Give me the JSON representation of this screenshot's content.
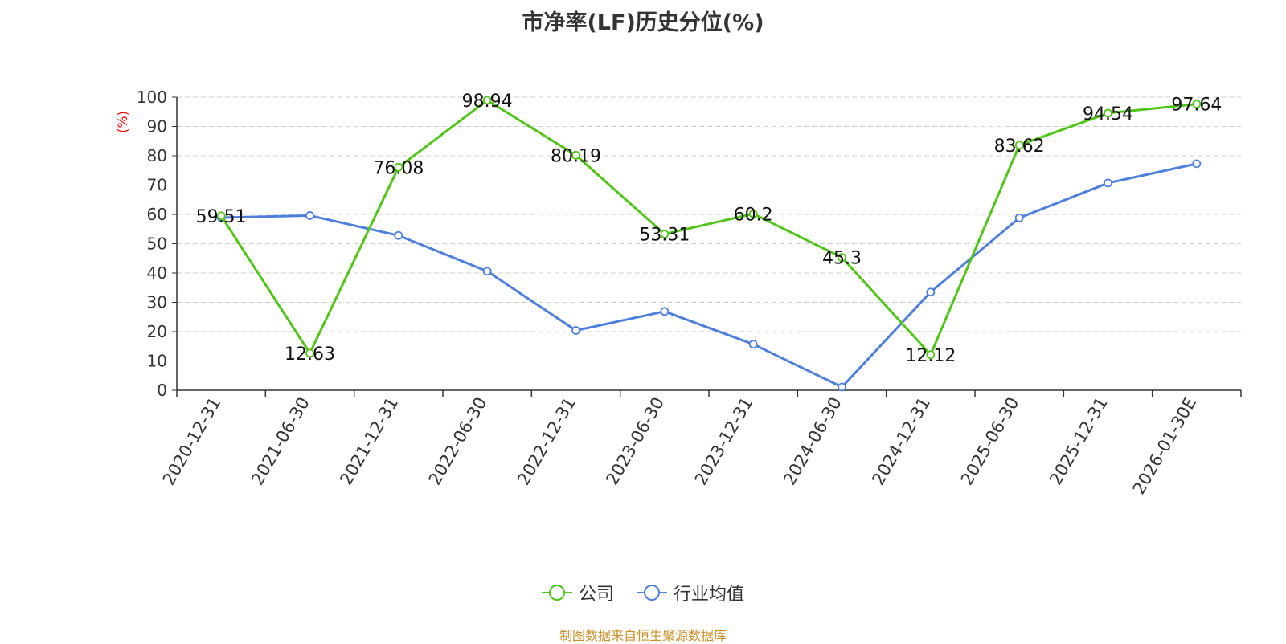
{
  "chart_data": {
    "type": "line",
    "title": "市净率(LF)历史分位(%)",
    "ylabel": "(%)",
    "xlabel": "",
    "ylim": [
      0,
      100
    ],
    "yticks": [
      0,
      10,
      20,
      30,
      40,
      50,
      60,
      70,
      80,
      90,
      100
    ],
    "grid": true,
    "legend_position": "bottom",
    "categories": [
      "2020-12-31",
      "2021-06-30",
      "2021-12-31",
      "2022-06-30",
      "2022-12-31",
      "2023-06-30",
      "2023-12-31",
      "2024-06-30",
      "2024-12-31",
      "2025-06-30",
      "2025-12-31",
      "2026-01-30E"
    ],
    "series": [
      {
        "name": "公司",
        "color": "#52c41a",
        "values": [
          59.51,
          12.63,
          76.08,
          98.94,
          80.19,
          53.31,
          60.2,
          45.3,
          12.12,
          83.62,
          94.54,
          97.64
        ],
        "labels": [
          "59.51",
          "12.63",
          "76.08",
          "98.94",
          "80.19",
          "53.31",
          "60.2",
          "45.3",
          "12.12",
          "83.62",
          "94.54",
          "97.64"
        ],
        "show_labels": true
      },
      {
        "name": "行业均值",
        "color": "#4e7fdb",
        "values": [
          58.9,
          59.6,
          52.8,
          40.6,
          20.4,
          26.9,
          15.7,
          1.1,
          33.5,
          58.8,
          70.7,
          77.3
        ],
        "show_labels": false
      }
    ]
  },
  "source_note": "制图数据来自恒生聚源数据库"
}
